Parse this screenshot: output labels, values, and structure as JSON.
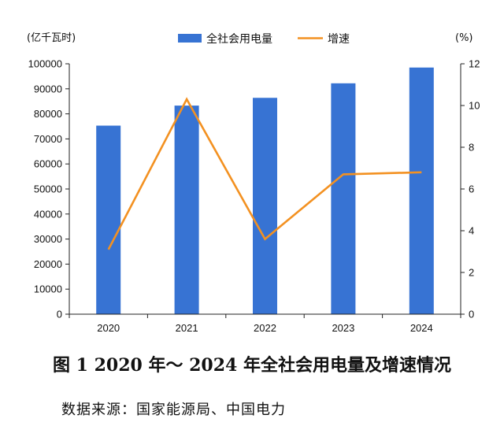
{
  "figure": {
    "caption": "图 1   2020 年～ 2024 年全社会用电量及增速情况",
    "source": "数据来源：国家能源局、中国电力"
  },
  "chart_data": {
    "type": "bar+line",
    "categories": [
      "2020",
      "2021",
      "2022",
      "2023",
      "2024"
    ],
    "series": [
      {
        "name": "全社会用电量",
        "type": "bar",
        "axis": "left",
        "values": [
          75300,
          83300,
          86400,
          92200,
          98500
        ],
        "color": "#3773d3"
      },
      {
        "name": "增速",
        "type": "line",
        "axis": "right",
        "values": [
          3.1,
          10.3,
          3.6,
          6.7,
          6.8
        ],
        "color": "#f39121"
      }
    ],
    "left_axis": {
      "unit": "(亿千瓦时)",
      "min": 0,
      "max": 100000,
      "step": 10000
    },
    "right_axis": {
      "unit": "(%)",
      "min": 0,
      "max": 12,
      "step": 2
    },
    "legend_position": "top-center",
    "grid": false
  }
}
